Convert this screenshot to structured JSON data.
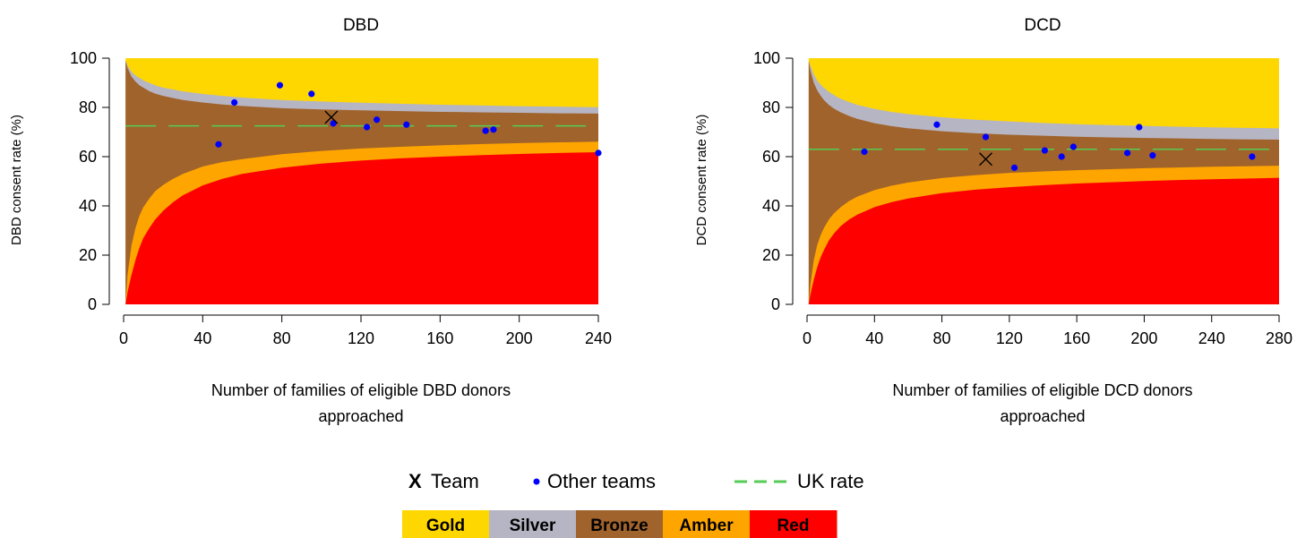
{
  "chart_data": [
    {
      "type": "scatter",
      "title": "DBD",
      "xlabel": [
        "Number of families of eligible DBD donors",
        "approached"
      ],
      "ylabel": "DBD consent rate (%)",
      "xlim": [
        0,
        240
      ],
      "ylim": [
        0,
        100
      ],
      "xticks": [
        0,
        40,
        80,
        120,
        160,
        200,
        240
      ],
      "yticks": [
        0,
        20,
        40,
        60,
        80,
        100
      ],
      "uk_rate": 72.5,
      "team": {
        "x": 105,
        "y": 76
      },
      "other_teams": [
        {
          "x": 48,
          "y": 65
        },
        {
          "x": 56,
          "y": 82
        },
        {
          "x": 79,
          "y": 89
        },
        {
          "x": 95,
          "y": 85.5
        },
        {
          "x": 106,
          "y": 73.5
        },
        {
          "x": 123,
          "y": 72
        },
        {
          "x": 128,
          "y": 75
        },
        {
          "x": 143,
          "y": 73
        },
        {
          "x": 183,
          "y": 70.5
        },
        {
          "x": 187,
          "y": 71
        },
        {
          "x": 240,
          "y": 61.5
        }
      ],
      "bands": {
        "x": [
          1,
          2,
          4,
          6,
          8,
          10,
          13,
          16,
          20,
          25,
          30,
          40,
          50,
          60,
          80,
          100,
          120,
          140,
          160,
          180,
          200,
          220,
          240
        ],
        "silver_lower": [
          99,
          97,
          94.5,
          93,
          92,
          91,
          90,
          89,
          88,
          87.3,
          86.5,
          85.5,
          84.7,
          84,
          83,
          82.4,
          81.9,
          81.5,
          81.1,
          80.8,
          80.5,
          80.3,
          80.1
        ],
        "bronze_upper": [
          99,
          96,
          92.5,
          90.5,
          89,
          88,
          86.6,
          85.6,
          84.7,
          83.8,
          83,
          82,
          81.2,
          80.6,
          79.7,
          79.2,
          78.8,
          78.5,
          78.2,
          78,
          77.8,
          77.6,
          77.5
        ],
        "amber_lower": [
          0,
          12,
          24,
          31,
          36,
          39.5,
          43,
          46,
          48.5,
          51,
          53,
          56,
          57.8,
          59,
          61,
          62.3,
          63.3,
          64,
          64.6,
          65.1,
          65.5,
          65.8,
          66.1
        ],
        "red_upper": [
          0,
          5,
          12,
          18,
          23,
          27,
          31,
          34.5,
          38,
          41.5,
          44.3,
          48.3,
          51,
          53,
          55.5,
          57.2,
          58.4,
          59.3,
          60,
          60.6,
          61.1,
          61.5,
          61.8
        ]
      }
    },
    {
      "type": "scatter",
      "title": "DCD",
      "xlabel": [
        "Number of families of eligible DCD donors",
        "approached"
      ],
      "ylabel": "DCD consent rate (%)",
      "xlim": [
        0,
        280
      ],
      "ylim": [
        0,
        100
      ],
      "xticks": [
        0,
        40,
        80,
        120,
        160,
        200,
        240,
        280
      ],
      "yticks": [
        0,
        20,
        40,
        60,
        80,
        100
      ],
      "uk_rate": 63,
      "team": {
        "x": 106,
        "y": 59
      },
      "other_teams": [
        {
          "x": 34,
          "y": 62
        },
        {
          "x": 77,
          "y": 73
        },
        {
          "x": 106,
          "y": 68
        },
        {
          "x": 123,
          "y": 55.5
        },
        {
          "x": 141,
          "y": 62.5
        },
        {
          "x": 151,
          "y": 60
        },
        {
          "x": 158,
          "y": 64
        },
        {
          "x": 190,
          "y": 61.5
        },
        {
          "x": 197,
          "y": 72
        },
        {
          "x": 205,
          "y": 60.5
        },
        {
          "x": 264,
          "y": 60
        }
      ],
      "bands": {
        "x": [
          1,
          2,
          4,
          6,
          8,
          10,
          13,
          16,
          20,
          25,
          30,
          40,
          50,
          60,
          80,
          100,
          120,
          140,
          160,
          180,
          200,
          220,
          240,
          260,
          280
        ],
        "silver_lower": [
          99,
          97,
          93.5,
          91,
          89.3,
          88,
          86.3,
          85,
          83.5,
          82.2,
          81,
          79.4,
          78.2,
          77.3,
          76,
          75,
          74.3,
          73.7,
          73.2,
          72.8,
          72.5,
          72.2,
          71.9,
          71.7,
          71.5
        ],
        "bronze_upper": [
          99,
          95,
          90,
          87,
          84.8,
          83,
          81,
          79.5,
          78,
          76.5,
          75.3,
          73.6,
          72.4,
          71.5,
          70.3,
          69.5,
          68.9,
          68.5,
          68.1,
          67.8,
          67.6,
          67.4,
          67.2,
          67,
          66.9
        ],
        "amber_lower": [
          0,
          8,
          18,
          24,
          28,
          31,
          34.5,
          37,
          39.5,
          42,
          43.8,
          46.4,
          48.2,
          49.5,
          51.3,
          52.5,
          53.4,
          54,
          54.5,
          54.9,
          55.3,
          55.6,
          55.9,
          56.1,
          56.3
        ],
        "red_upper": [
          0,
          4,
          10,
          15,
          19,
          22,
          26,
          28.8,
          31.8,
          34.5,
          36.5,
          39.5,
          41.5,
          43,
          45.2,
          46.6,
          47.6,
          48.4,
          49.1,
          49.6,
          50.1,
          50.5,
          50.8,
          51.1,
          51.4
        ]
      }
    }
  ],
  "legend": {
    "team_marker": "X",
    "team_label": "Team",
    "others_label": "Other teams",
    "uk_label": "UK rate"
  },
  "bands_legend": [
    {
      "label": "Gold",
      "color": "#FFD700"
    },
    {
      "label": "Silver",
      "color": "#B6B5C3"
    },
    {
      "label": "Bronze",
      "color": "#A0632B"
    },
    {
      "label": "Amber",
      "color": "#FFA500"
    },
    {
      "label": "Red",
      "color": "#FF0000"
    }
  ],
  "colors": {
    "gold": "#FFD700",
    "silver": "#B6B5C3",
    "bronze": "#A0632B",
    "amber": "#FFA500",
    "red": "#FF0000",
    "dots": "#0000FF",
    "uk_line": "#55CC55"
  }
}
